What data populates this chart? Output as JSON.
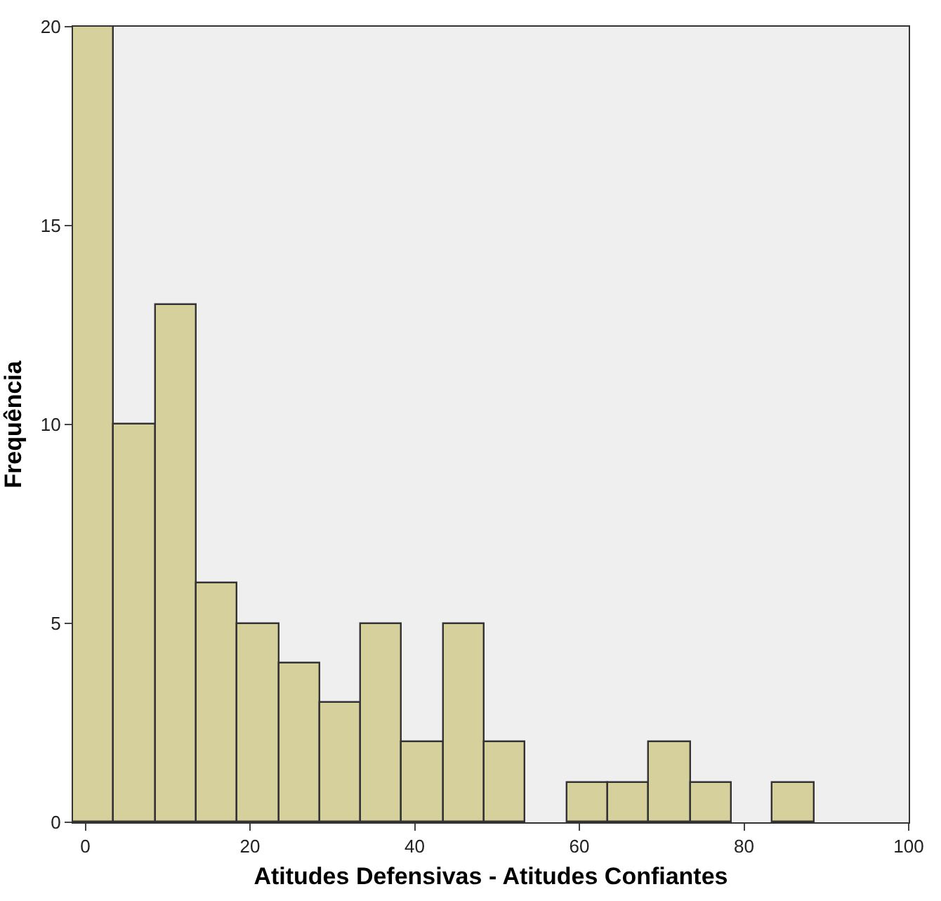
{
  "chart_data": {
    "type": "histogram",
    "xlabel": "Atitudes Defensivas - Atitudes Confiantes",
    "ylabel": "Frequência",
    "bins": [
      -1.5,
      3.5,
      8.5,
      13.5,
      18.5,
      23.5,
      28.5,
      33.5,
      38.5,
      43.5,
      48.5,
      53.5,
      58.5,
      63.5,
      68.5,
      73.5,
      78.5,
      83.5,
      88.5
    ],
    "values": [
      20,
      10,
      13,
      6,
      5,
      4,
      3,
      5,
      2,
      5,
      2,
      0,
      1,
      1,
      2,
      1,
      0,
      1
    ],
    "color": "#d6d09c",
    "xlim": [
      -1.5,
      100
    ],
    "xticks": [
      0,
      20,
      40,
      60,
      80,
      100
    ],
    "ylim": [
      0,
      20
    ],
    "yticks": [
      0,
      5,
      10,
      15,
      20
    ],
    "grid": false,
    "legend": false
  }
}
